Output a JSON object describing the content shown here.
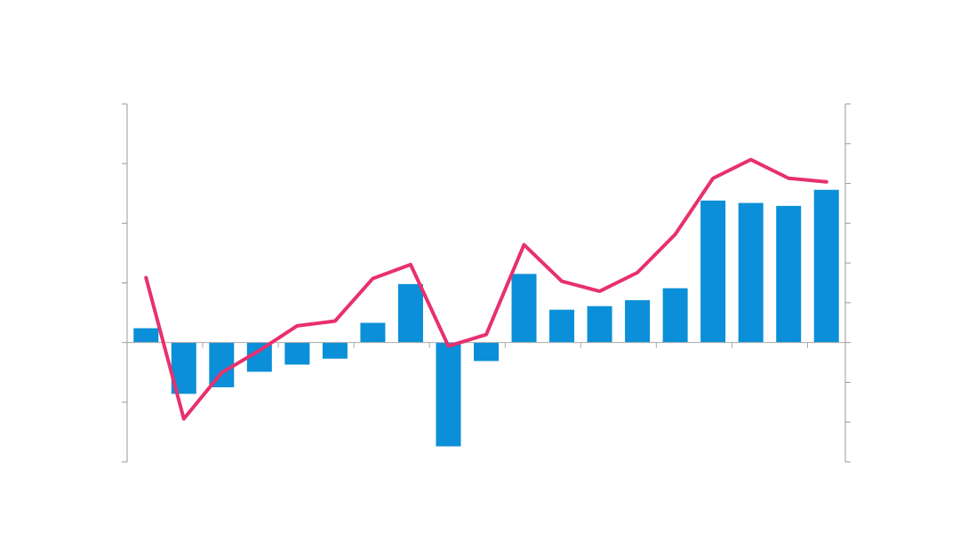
{
  "chart_data": {
    "type": "bar-line",
    "categories": [
      null,
      null,
      null,
      null,
      null,
      null,
      null,
      null,
      null,
      null,
      null,
      null,
      null,
      null,
      null,
      null,
      null,
      null,
      null
    ],
    "series": [
      {
        "type": "bar",
        "color": "#0a8fd8",
        "values": [
          0.24,
          -0.86,
          -0.75,
          -0.49,
          -0.37,
          -0.27,
          0.33,
          0.98,
          -1.74,
          -0.31,
          1.15,
          0.55,
          0.61,
          0.71,
          0.91,
          2.38,
          2.34,
          2.29,
          2.56
        ]
      },
      {
        "type": "line",
        "axis": "y2",
        "color": "#e8306e",
        "values": [
          1.63,
          -1.92,
          -0.76,
          -0.2,
          0.42,
          0.54,
          1.61,
          1.96,
          -0.09,
          0.2,
          2.46,
          1.54,
          1.29,
          1.76,
          2.72,
          4.13,
          4.6,
          4.13,
          4.04
        ]
      }
    ],
    "ylim": [
      -2,
      4
    ],
    "yticks": [
      -2,
      -1,
      0,
      1,
      2,
      3,
      4
    ],
    "y2lim": [
      -3,
      6
    ],
    "y2ticks": [
      -3,
      -2,
      -1,
      0,
      1,
      2,
      3,
      4,
      5,
      6
    ]
  }
}
